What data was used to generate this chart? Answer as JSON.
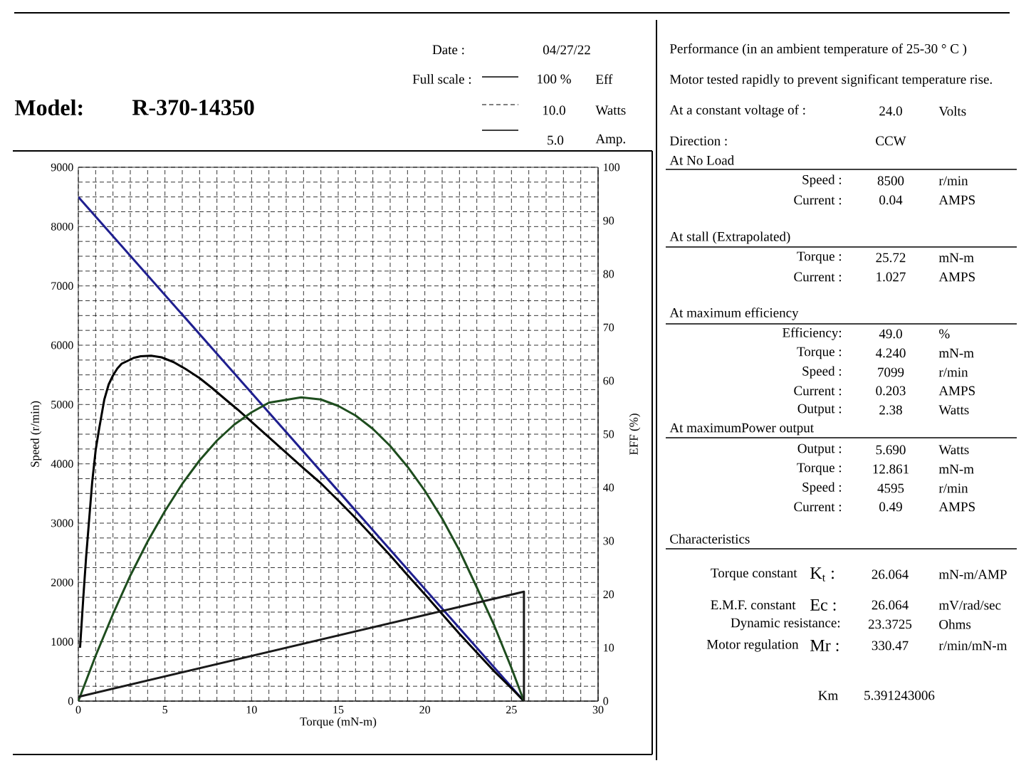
{
  "chart_data": {
    "type": "line",
    "title": "Model:",
    "subtitle": "R-370-14350",
    "xlabel": "Torque (mN-m)",
    "ylabel": "Speed (r/min)",
    "y2label": "EFF (%)",
    "xlim": [
      0,
      30
    ],
    "xticks": [
      0,
      5,
      10,
      15,
      20,
      25,
      30
    ],
    "ylim": [
      0,
      9000
    ],
    "yticks": [
      0,
      1000,
      2000,
      3000,
      4000,
      5000,
      6000,
      7000,
      8000,
      9000
    ],
    "y2lim": [
      0,
      100
    ],
    "y2ticks": [
      0,
      10,
      20,
      30,
      40,
      50,
      60,
      70,
      80,
      90,
      100
    ],
    "grid": true,
    "series": [
      {
        "color": "#1f1f8f",
        "x": [
          0,
          25.72
        ],
        "values": [
          8500,
          0
        ]
      },
      {
        "color": "#000000",
        "axis": "y2",
        "x": [
          0.1,
          0.2,
          0.3,
          0.45,
          0.6,
          0.8,
          1.0,
          1.2,
          1.5,
          1.75,
          2.0,
          2.25,
          2.5,
          3.2,
          3.6,
          4.2,
          4.8,
          5.5,
          6.2,
          7,
          7.7,
          8.5,
          9.2,
          10,
          11,
          12,
          13,
          14,
          15,
          16,
          17,
          18,
          19,
          20,
          21,
          22,
          23,
          24,
          25,
          25.72
        ],
        "values": [
          10,
          15,
          20,
          27,
          33,
          41,
          47,
          51,
          56.5,
          59.3,
          61,
          62.3,
          63.2,
          64.3,
          64.6,
          64.7,
          64.4,
          63.5,
          62.2,
          60.5,
          58.7,
          56.5,
          54.6,
          52.3,
          49.4,
          46.5,
          43.6,
          40.8,
          37.6,
          34.3,
          30.8,
          27.3,
          23.6,
          20.0,
          16.3,
          12.6,
          9.1,
          5.6,
          2.4,
          0
        ]
      },
      {
        "color": "#1e4d1e",
        "axis": "y2",
        "x": [
          0,
          1,
          2,
          3,
          4,
          5,
          6,
          7,
          8,
          9,
          10,
          11,
          12.86,
          14,
          15,
          16,
          17,
          18,
          19,
          20,
          21,
          22,
          23,
          24,
          25,
          25.72
        ],
        "values": [
          0,
          8.5,
          16.3,
          23.5,
          29.9,
          35.6,
          40.7,
          45.1,
          48.8,
          51.8,
          54.1,
          55.9,
          56.9,
          56.5,
          55.3,
          53.5,
          51.0,
          47.8,
          43.9,
          39.4,
          34.2,
          28.2,
          21.3,
          14.2,
          6.2,
          0
        ]
      },
      {
        "color": "#1a1a1a",
        "axis": "y2",
        "x": [
          0,
          25.72,
          25.72
        ],
        "values": [
          0.8,
          20.5,
          0
        ]
      }
    ],
    "annotations": [
      "Date :",
      "04/27/22",
      "Full scale :",
      "100 %",
      "Eff",
      "10.0",
      "Watts",
      "5.0",
      "Amp.",
      "Performance (in an ambient temperature of 25-30 ° C )",
      "Motor tested rapidly to prevent significant temperature rise.",
      "At a constant voltage of :",
      "24.0",
      "Volts",
      "Direction :",
      "CCW",
      "At No Load",
      "Speed :",
      "8500",
      "r/min",
      "Current :",
      "0.04",
      "AMPS",
      "At stall (Extrapolated)",
      "Torque :",
      "25.72",
      "mN-m",
      "Current :",
      "1.027",
      "AMPS",
      "At maximum efficiency",
      "Efficiency:",
      "49.0",
      "%",
      "Torque :",
      "4.240",
      "mN-m",
      "Speed :",
      "7099",
      "r/min",
      "Current :",
      "0.203",
      "AMPS",
      "Output :",
      "2.38",
      "Watts",
      "At maximumPower output",
      "Output :",
      "5.690",
      "Watts",
      "Torque :",
      "12.861",
      "mN-m",
      "Speed :",
      "4595",
      "r/min",
      "Current :",
      "0.49",
      "AMPS",
      "Characteristics",
      "Torque constant",
      "K$_{t}$ :",
      "26.064",
      "mN-m/AMP",
      "E.M.F. constant",
      "Ec :",
      "26.064",
      "mV/rad/sec",
      "Dynamic resistance:",
      "23.3725",
      "Ohms",
      "Motor regulation",
      "Mr :",
      "330.47",
      "r/min/mN-m",
      "Km",
      "5.391243006"
    ]
  }
}
